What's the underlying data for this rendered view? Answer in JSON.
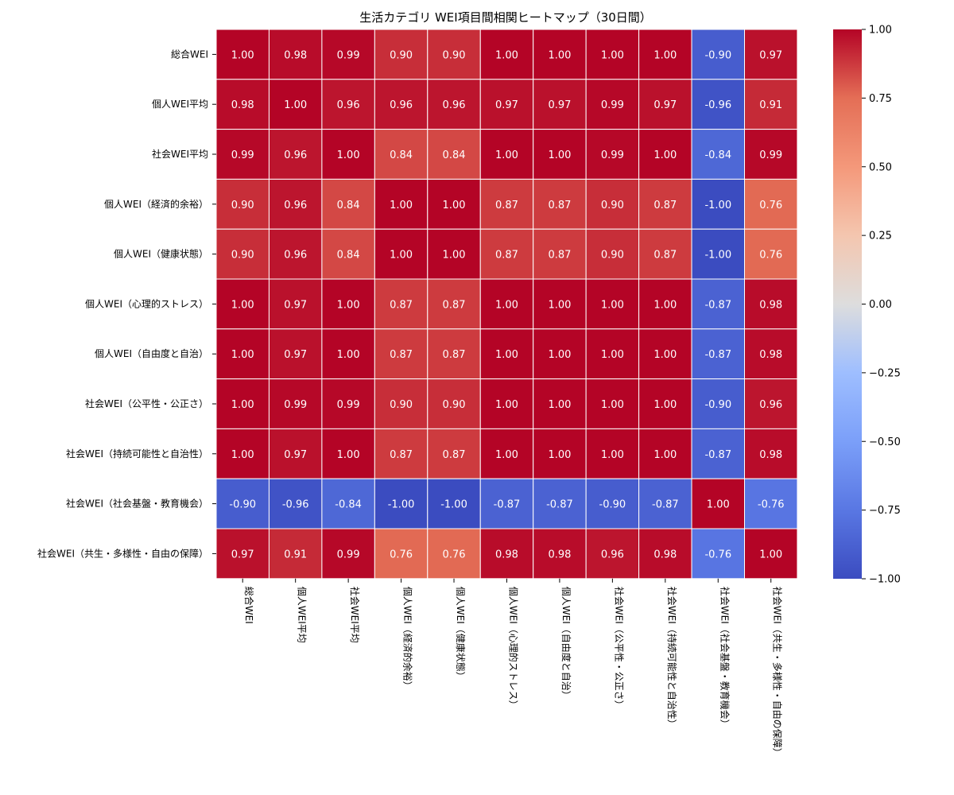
{
  "chart_data": {
    "type": "heatmap",
    "title": "生活カテゴリ WEI項目間相関ヒートマップ（30日間）",
    "labels": [
      "総合WEI",
      "個人WEI平均",
      "社会WEI平均",
      "個人WEI（経済的余裕）",
      "個人WEI（健康状態）",
      "個人WEI（心理的ストレス）",
      "個人WEI（自由度と自治）",
      "社会WEI（公平性・公正さ）",
      "社会WEI（持続可能性と自治性）",
      "社会WEI（社会基盤・教育機会）",
      "社会WEI（共生・多様性・自由の保障）"
    ],
    "values": [
      [
        1.0,
        0.98,
        0.99,
        0.9,
        0.9,
        1.0,
        1.0,
        1.0,
        1.0,
        -0.9,
        0.97
      ],
      [
        0.98,
        1.0,
        0.96,
        0.96,
        0.96,
        0.97,
        0.97,
        0.99,
        0.97,
        -0.96,
        0.91
      ],
      [
        0.99,
        0.96,
        1.0,
        0.84,
        0.84,
        1.0,
        1.0,
        0.99,
        1.0,
        -0.84,
        0.99
      ],
      [
        0.9,
        0.96,
        0.84,
        1.0,
        1.0,
        0.87,
        0.87,
        0.9,
        0.87,
        -1.0,
        0.76
      ],
      [
        0.9,
        0.96,
        0.84,
        1.0,
        1.0,
        0.87,
        0.87,
        0.9,
        0.87,
        -1.0,
        0.76
      ],
      [
        1.0,
        0.97,
        1.0,
        0.87,
        0.87,
        1.0,
        1.0,
        1.0,
        1.0,
        -0.87,
        0.98
      ],
      [
        1.0,
        0.97,
        1.0,
        0.87,
        0.87,
        1.0,
        1.0,
        1.0,
        1.0,
        -0.87,
        0.98
      ],
      [
        1.0,
        0.99,
        0.99,
        0.9,
        0.9,
        1.0,
        1.0,
        1.0,
        1.0,
        -0.9,
        0.96
      ],
      [
        1.0,
        0.97,
        1.0,
        0.87,
        0.87,
        1.0,
        1.0,
        1.0,
        1.0,
        -0.87,
        0.98
      ],
      [
        -0.9,
        -0.96,
        -0.84,
        -1.0,
        -1.0,
        -0.87,
        -0.87,
        -0.9,
        -0.87,
        1.0,
        -0.76
      ],
      [
        0.97,
        0.91,
        0.99,
        0.76,
        0.76,
        0.98,
        0.98,
        0.96,
        0.98,
        -0.76,
        1.0
      ]
    ],
    "value_format": "0.00",
    "vmin": -1.0,
    "vmax": 1.0,
    "colormap": "coolwarm",
    "colorbar_ticks": [
      "1.00",
      "0.75",
      "0.50",
      "0.25",
      "0.00",
      "−0.25",
      "−0.50",
      "−0.75",
      "−1.00"
    ],
    "colorbar_tick_values": [
      1.0,
      0.75,
      0.5,
      0.25,
      0.0,
      -0.25,
      -0.5,
      -0.75,
      -1.0
    ],
    "xlabel": "",
    "ylabel": "",
    "legend": "colorbar-right",
    "grid": false
  }
}
